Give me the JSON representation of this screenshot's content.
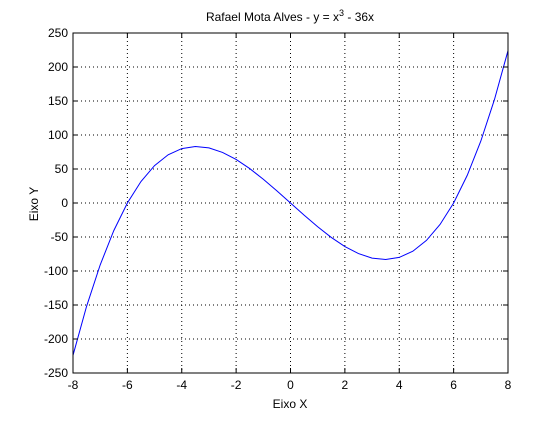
{
  "chart_data": {
    "type": "line",
    "title": {
      "prefix": "Rafael Mota Alves - y = x",
      "superscript": "3",
      "suffix": " - 36x"
    },
    "xlabel": "Eixo X",
    "ylabel": "Eixo Y",
    "xlim": [
      -8,
      8
    ],
    "ylim": [
      -250,
      250
    ],
    "xticks": [
      -8,
      -6,
      -4,
      -2,
      0,
      2,
      4,
      6,
      8
    ],
    "yticks": [
      -250,
      -200,
      -150,
      -100,
      -50,
      0,
      50,
      100,
      150,
      200,
      250
    ],
    "grid": true,
    "grid_style": "dotted",
    "series": [
      {
        "color": "#0000ff",
        "x": [
          -8,
          -7.5,
          -7,
          -6.5,
          -6,
          -5.5,
          -5,
          -4.5,
          -4,
          -3.5,
          -3,
          -2.5,
          -2,
          -1.5,
          -1,
          -0.5,
          0,
          0.5,
          1,
          1.5,
          2,
          2.5,
          3,
          3.5,
          4,
          4.5,
          5,
          5.5,
          6,
          6.5,
          7,
          7.5,
          8
        ],
        "y": [
          -224,
          -151.9,
          -91,
          -40.6,
          0,
          31.6,
          55,
          70.9,
          80,
          83.1,
          81,
          74.4,
          64,
          50.6,
          35,
          17.9,
          0,
          -17.9,
          -35,
          -50.6,
          -64,
          -74.4,
          -81,
          -83.1,
          -80,
          -70.9,
          -55,
          -31.6,
          0,
          40.6,
          91,
          151.9,
          224
        ]
      }
    ]
  }
}
